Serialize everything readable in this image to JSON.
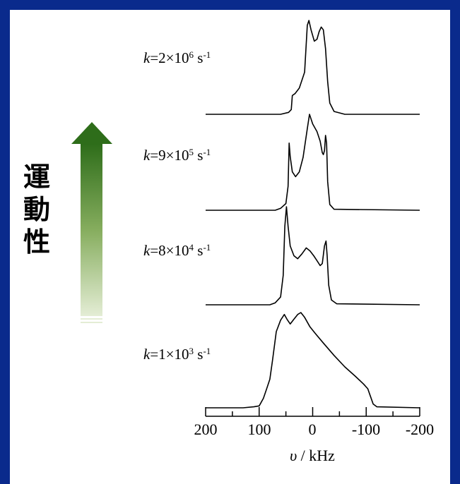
{
  "side_label": [
    "運",
    "動",
    "性"
  ],
  "arrow_color": "#2e7d1e",
  "chart_data": {
    "type": "line",
    "xlabel_symbol": "υ",
    "xlabel_unit": "/ kHz",
    "xlim": [
      200,
      -200
    ],
    "x_reversed": true,
    "x_ticks": [
      "200",
      "100",
      "0",
      "-100",
      "-200"
    ],
    "tick_values": [
      200,
      100,
      0,
      -100,
      -200
    ],
    "series": [
      {
        "k_prefix": "k",
        "k_mant": "=2×10",
        "k_exp": "6",
        "k_unit": " s",
        "k_unit_exp": "-1",
        "points": [
          [
            200,
            0
          ],
          [
            60,
            0
          ],
          [
            45,
            0.02
          ],
          [
            40,
            0.05
          ],
          [
            38,
            0.2
          ],
          [
            33,
            0.22
          ],
          [
            25,
            0.28
          ],
          [
            15,
            0.45
          ],
          [
            10,
            0.95
          ],
          [
            7,
            1.0
          ],
          [
            3,
            0.9
          ],
          [
            -3,
            0.78
          ],
          [
            -8,
            0.8
          ],
          [
            -12,
            0.88
          ],
          [
            -16,
            0.93
          ],
          [
            -20,
            0.9
          ],
          [
            -24,
            0.7
          ],
          [
            -28,
            0.35
          ],
          [
            -32,
            0.12
          ],
          [
            -40,
            0.03
          ],
          [
            -60,
            0
          ],
          [
            -200,
            0
          ]
        ]
      },
      {
        "k_prefix": "k",
        "k_mant": "=9×10",
        "k_exp": "5",
        "k_unit": " s",
        "k_unit_exp": "-1",
        "points": [
          [
            200,
            0
          ],
          [
            70,
            0
          ],
          [
            60,
            0.02
          ],
          [
            50,
            0.07
          ],
          [
            46,
            0.25
          ],
          [
            44,
            0.7
          ],
          [
            42,
            0.56
          ],
          [
            38,
            0.4
          ],
          [
            32,
            0.35
          ],
          [
            25,
            0.4
          ],
          [
            18,
            0.55
          ],
          [
            10,
            0.85
          ],
          [
            6,
            1.0
          ],
          [
            0,
            0.9
          ],
          [
            -8,
            0.82
          ],
          [
            -14,
            0.72
          ],
          [
            -18,
            0.6
          ],
          [
            -20,
            0.58
          ],
          [
            -22,
            0.62
          ],
          [
            -24,
            0.78
          ],
          [
            -26,
            0.7
          ],
          [
            -28,
            0.3
          ],
          [
            -32,
            0.06
          ],
          [
            -40,
            0.01
          ],
          [
            -200,
            0
          ]
        ]
      },
      {
        "k_prefix": "k",
        "k_mant": "=8×10",
        "k_exp": "4",
        "k_unit": " s",
        "k_unit_exp": "-1",
        "points": [
          [
            200,
            0
          ],
          [
            80,
            0
          ],
          [
            70,
            0.02
          ],
          [
            60,
            0.08
          ],
          [
            55,
            0.3
          ],
          [
            52,
            0.8
          ],
          [
            49,
            1.0
          ],
          [
            46,
            0.8
          ],
          [
            42,
            0.6
          ],
          [
            35,
            0.5
          ],
          [
            28,
            0.47
          ],
          [
            20,
            0.52
          ],
          [
            12,
            0.58
          ],
          [
            5,
            0.55
          ],
          [
            -2,
            0.5
          ],
          [
            -8,
            0.45
          ],
          [
            -14,
            0.4
          ],
          [
            -18,
            0.42
          ],
          [
            -22,
            0.6
          ],
          [
            -25,
            0.65
          ],
          [
            -27,
            0.5
          ],
          [
            -30,
            0.2
          ],
          [
            -35,
            0.05
          ],
          [
            -45,
            0.01
          ],
          [
            -200,
            0
          ]
        ]
      },
      {
        "k_prefix": "k",
        "k_mant": "=1×10",
        "k_exp": "3",
        "k_unit": " s",
        "k_unit_exp": "-1",
        "points": [
          [
            200,
            0
          ],
          [
            130,
            0
          ],
          [
            110,
            0.01
          ],
          [
            100,
            0.02
          ],
          [
            92,
            0.1
          ],
          [
            86,
            0.2
          ],
          [
            80,
            0.3
          ],
          [
            75,
            0.5
          ],
          [
            68,
            0.8
          ],
          [
            60,
            0.92
          ],
          [
            53,
            0.98
          ],
          [
            48,
            0.93
          ],
          [
            42,
            0.88
          ],
          [
            35,
            0.93
          ],
          [
            28,
            0.98
          ],
          [
            22,
            1.0
          ],
          [
            15,
            0.95
          ],
          [
            5,
            0.85
          ],
          [
            -5,
            0.78
          ],
          [
            -20,
            0.68
          ],
          [
            -40,
            0.55
          ],
          [
            -60,
            0.43
          ],
          [
            -80,
            0.33
          ],
          [
            -95,
            0.25
          ],
          [
            -103,
            0.2
          ],
          [
            -108,
            0.12
          ],
          [
            -113,
            0.04
          ],
          [
            -120,
            0.01
          ],
          [
            -200,
            0
          ]
        ]
      }
    ]
  }
}
